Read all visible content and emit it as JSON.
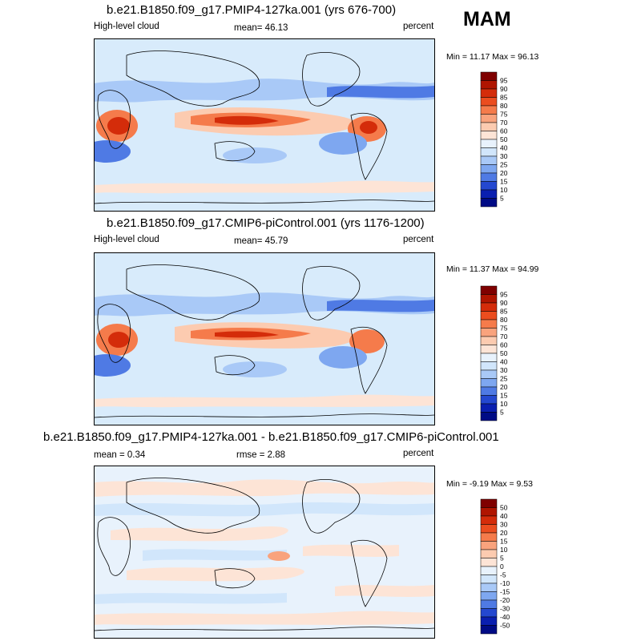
{
  "season": "MAM",
  "panels": [
    {
      "title": "b.e21.B1850.f09_g17.PMIP4-127ka.001 (yrs 676-700)",
      "left_label": "High-level cloud",
      "mean_text": "mean=  46.13",
      "units": "percent",
      "minmax": "Min =  11.17 Max =  96.13",
      "colorbar": [
        "95",
        "90",
        "85",
        "80",
        "75",
        "70",
        "60",
        "50",
        "40",
        "30",
        "25",
        "20",
        "15",
        "10",
        "5"
      ]
    },
    {
      "title": "b.e21.B1850.f09_g17.CMIP6-piControl.001 (yrs 1176-1200)",
      "left_label": "High-level cloud",
      "mean_text": "mean=  45.79",
      "units": "percent",
      "minmax": "Min =  11.37 Max =  94.99",
      "colorbar": [
        "95",
        "90",
        "85",
        "80",
        "75",
        "70",
        "60",
        "50",
        "40",
        "30",
        "25",
        "20",
        "15",
        "10",
        "5"
      ]
    },
    {
      "title": "b.e21.B1850.f09_g17.PMIP4-127ka.001 - b.e21.B1850.f09_g17.CMIP6-piControl.001",
      "left_label": "mean =   0.34",
      "mean_text": "rmse =   2.88",
      "units": "percent",
      "minmax": "Min =  -9.19 Max =   9.53",
      "colorbar": [
        "50",
        "40",
        "30",
        "20",
        "15",
        "10",
        "5",
        "0",
        "-5",
        "-10",
        "-15",
        "-20",
        "-30",
        "-40",
        "-50"
      ]
    }
  ],
  "colors": {
    "scale": [
      "#7f0000",
      "#b01500",
      "#d42c0a",
      "#eb4d1f",
      "#f57b4b",
      "#f9a37d",
      "#fccbb0",
      "#fde4d6",
      "#e8f2fc",
      "#d1e6fb",
      "#a9c9f7",
      "#7ea7f0",
      "#4f7ae4",
      "#2448d0",
      "#0a1fb0",
      "#000b85"
    ],
    "land_line": "#000000",
    "frame": "#000000"
  },
  "chart_data": {
    "type": "heatmap",
    "variable": "High-level cloud",
    "units": "percent",
    "season": "MAM",
    "panels": [
      {
        "name": "b.e21.B1850.f09_g17.PMIP4-127ka.001 (yrs 676-700)",
        "mean": 46.13,
        "min": 11.17,
        "max": 96.13,
        "levels": [
          5,
          10,
          15,
          20,
          25,
          30,
          40,
          50,
          60,
          70,
          75,
          80,
          85,
          90,
          95
        ]
      },
      {
        "name": "b.e21.B1850.f09_g17.CMIP6-piControl.001 (yrs 1176-1200)",
        "mean": 45.79,
        "min": 11.37,
        "max": 94.99,
        "levels": [
          5,
          10,
          15,
          20,
          25,
          30,
          40,
          50,
          60,
          70,
          75,
          80,
          85,
          90,
          95
        ]
      },
      {
        "name": "b.e21.B1850.f09_g17.PMIP4-127ka.001 - b.e21.B1850.f09_g17.CMIP6-piControl.001",
        "mean": 0.34,
        "rmse": 2.88,
        "min": -9.19,
        "max": 9.53,
        "levels": [
          -50,
          -40,
          -30,
          -20,
          -15,
          -10,
          -5,
          0,
          5,
          10,
          15,
          20,
          30,
          40,
          50
        ]
      }
    ]
  }
}
